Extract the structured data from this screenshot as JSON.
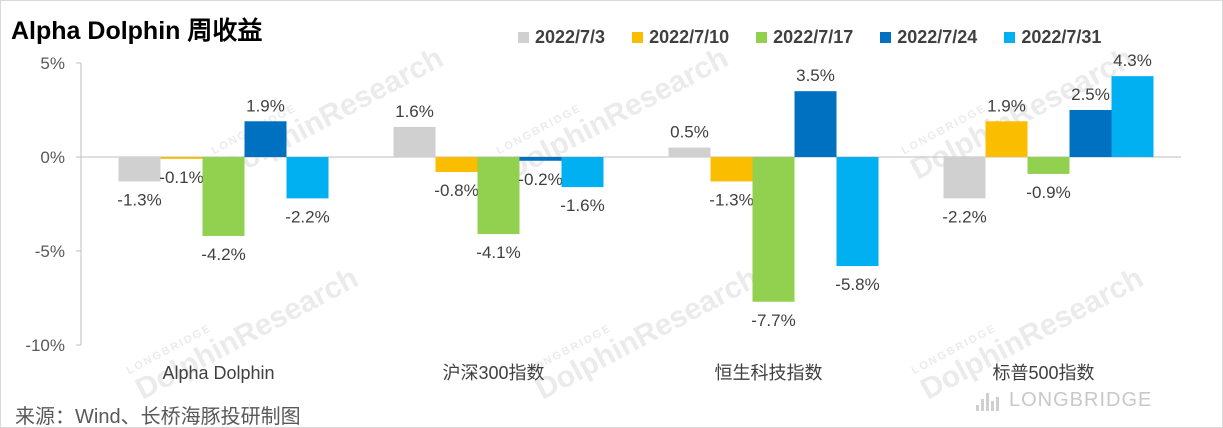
{
  "title": "Alpha Dolphin 周收益",
  "source": "来源：Wind、长桥海豚投研制图",
  "watermark": {
    "brand": "LONGBRIDGE",
    "name": "DolphinResearch",
    "corner": "LONGBRIDGE"
  },
  "chart_data": {
    "type": "bar",
    "categories": [
      "Alpha Dolphin",
      "沪深300指数",
      "恒生科技指数",
      "标普500指数"
    ],
    "series": [
      {
        "name": "2022/7/3",
        "color": "#d0d0d0",
        "values": [
          -1.3,
          1.6,
          0.5,
          -2.2
        ],
        "labels": [
          "-1.3%",
          "1.6%",
          "0.5%",
          "-2.2%"
        ]
      },
      {
        "name": "2022/7/10",
        "color": "#fbbd00",
        "values": [
          -0.1,
          -0.8,
          -1.3,
          1.9
        ],
        "labels": [
          "-0.1%",
          "-0.8%",
          "-1.3%",
          "1.9%"
        ]
      },
      {
        "name": "2022/7/17",
        "color": "#92d050",
        "values": [
          -4.2,
          -4.1,
          -7.7,
          -0.9
        ],
        "labels": [
          "-4.2%",
          "-4.1%",
          "-7.7%",
          "-0.9%"
        ]
      },
      {
        "name": "2022/7/24",
        "color": "#0070c0",
        "values": [
          1.9,
          -0.2,
          3.5,
          2.5
        ],
        "labels": [
          "1.9%",
          "-0.2%",
          "3.5%",
          "2.5%"
        ]
      },
      {
        "name": "2022/7/31",
        "color": "#00b0f0",
        "values": [
          -2.2,
          -1.6,
          -5.8,
          4.3
        ],
        "labels": [
          "-2.2%",
          "-1.6%",
          "-5.8%",
          "4.3%"
        ]
      }
    ],
    "y_ticks": [
      5,
      0,
      -5,
      -10
    ],
    "y_tick_labels": [
      "5%",
      "0%",
      "-5%",
      "-10%"
    ],
    "ylim": [
      -10,
      5
    ],
    "legend": "top-right",
    "grid": false
  }
}
